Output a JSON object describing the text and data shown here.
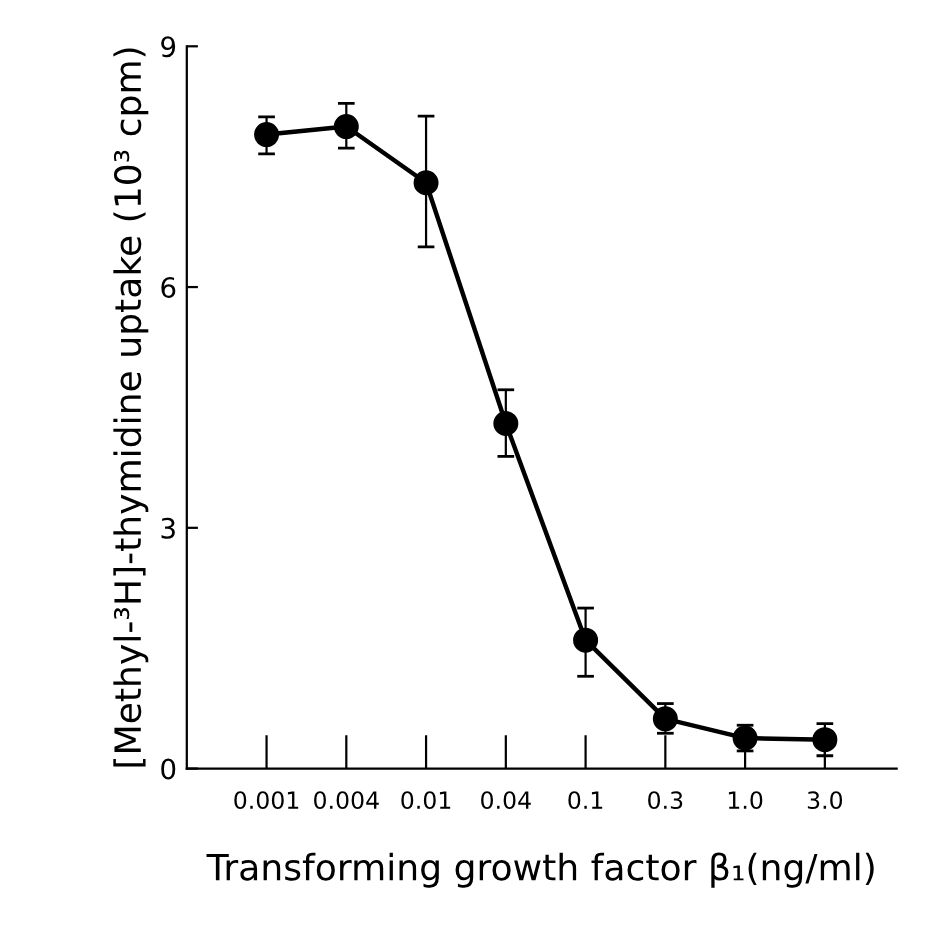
{
  "chart_data": {
    "type": "line",
    "xlabel": "Transforming growth factor β₁(ng/ml)",
    "ylabel": "[Methyl-³H]-thymidine uptake (10³ cpm)",
    "categories": [
      "0.001",
      "0.004",
      "0.01",
      "0.04",
      "0.1",
      "0.3",
      "1.0",
      "3.0"
    ],
    "series": [
      {
        "color": "#000000",
        "values": [
          7.9,
          8.0,
          7.3,
          4.3,
          1.6,
          0.62,
          0.38,
          0.36
        ],
        "errors": [
          [
            7.66,
            8.12
          ],
          [
            7.73,
            8.29
          ],
          [
            6.5,
            8.13
          ],
          [
            3.89,
            4.72
          ],
          [
            1.15,
            2.0
          ],
          [
            0.44,
            0.81
          ],
          [
            0.22,
            0.54
          ],
          [
            0.16,
            0.56
          ]
        ]
      }
    ],
    "ylim": [
      0,
      9
    ],
    "yticks": [
      0,
      3,
      6,
      9
    ],
    "marker": "circle",
    "line_style": "solid",
    "grid": false,
    "legend": false
  }
}
